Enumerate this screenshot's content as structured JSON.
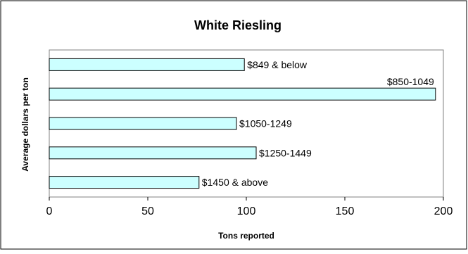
{
  "chart_data": {
    "type": "bar",
    "orientation": "horizontal",
    "title": "White Riesling",
    "xlabel": "Tons reported",
    "ylabel": "Average dollars per ton",
    "xlim": [
      0,
      200
    ],
    "xticks": [
      0,
      50,
      100,
      150,
      200
    ],
    "grid": false,
    "legend": "none",
    "categories": [
      "$849 & below",
      "$850-1049",
      "$1050-1249",
      "$1250-1449",
      "$1450 & above"
    ],
    "values": [
      99,
      196,
      95,
      105,
      76
    ],
    "bar_color": "#ccffff",
    "bar_edge_color": "#000000"
  }
}
